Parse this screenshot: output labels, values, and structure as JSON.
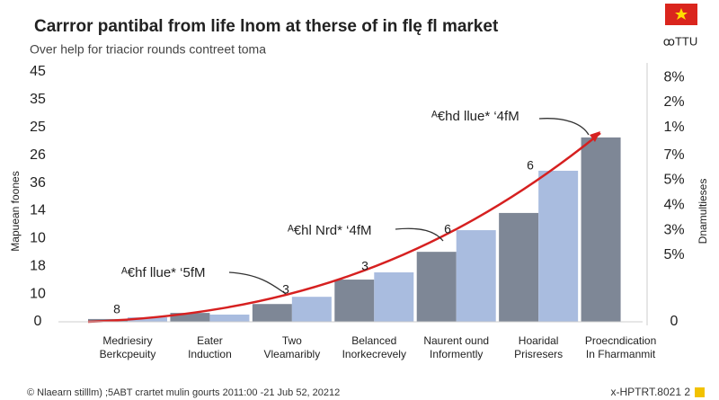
{
  "chart_data": {
    "type": "bar",
    "title": "Carrror pantibal from life lnom at therse of in flę fl market",
    "subtitle": "Over help for triacior rounds contreet toma",
    "corner_label": "ꝏTTU",
    "y_label": "Mapuean foones",
    "y2_label": "Dnamultieses",
    "categories": [
      [
        "Medriesiry",
        "Berkcpeuity"
      ],
      [
        "Eater",
        "Induction"
      ],
      [
        "Two",
        "Vleamaribly"
      ],
      [
        "Belanced",
        "Inorkecrevely"
      ],
      [
        "Naurent ound",
        "Informently"
      ],
      [
        "Hoaridal",
        "Prisresers"
      ],
      [
        "Proecndication",
        "In Fharmanmit"
      ]
    ],
    "series": [
      {
        "color": "#7e8796",
        "values": [
          0.5,
          1.6,
          3.2,
          7.6,
          12.6,
          19.6,
          33.2
        ]
      },
      {
        "color": "#a9bcdf",
        "values": [
          0.8,
          1.3,
          4.5,
          8.9,
          16.5,
          27.2,
          null
        ]
      }
    ],
    "bar_labels": [
      "8",
      "3",
      "3",
      "6",
      "6"
    ],
    "annotations": [
      "ᴬ€hf llue* ‘5fM",
      "ᴬ€hl Nrd* ‘4fM",
      "ᴬ€hd llue* ‘4fM"
    ],
    "ylim": [
      0,
      45
    ],
    "yticks": [
      45,
      {
        "value": 40,
        "label": "35"
      },
      {
        "value": 35,
        "label": "25"
      },
      {
        "value": 30,
        "label": "26"
      },
      {
        "value": 25,
        "label": "36"
      },
      {
        "value": 20,
        "label": "14"
      },
      {
        "value": 15,
        "label": "10"
      },
      {
        "value": 10,
        "label": "18"
      },
      {
        "value": 5,
        "label": "10"
      },
      0
    ],
    "y2lim": [
      0,
      45
    ],
    "y2ticks": [
      {
        "value": 44,
        "label": "8%"
      },
      {
        "value": 39.5,
        "label": "2%"
      },
      {
        "value": 35,
        "label": "1%"
      },
      {
        "value": 30,
        "label": "7%"
      },
      {
        "value": 25.5,
        "label": "5%"
      },
      {
        "value": 21,
        "label": "4%"
      },
      {
        "value": 16.5,
        "label": "3%"
      },
      {
        "value": 12,
        "label": "5%"
      },
      0
    ],
    "footer": "© Nlaearn stilllm) ;5ABT crartet mulin gourts 2011:00 -21 Jub 52, 20212",
    "footer_right": "x-HPTRT.8021 2"
  }
}
